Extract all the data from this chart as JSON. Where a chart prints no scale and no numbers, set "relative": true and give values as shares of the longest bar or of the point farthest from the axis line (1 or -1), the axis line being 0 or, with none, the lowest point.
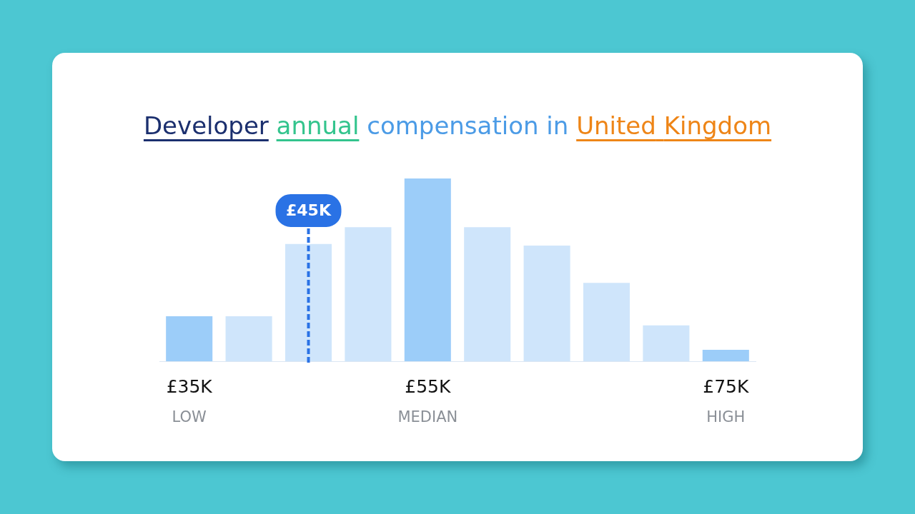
{
  "chart_data": {
    "type": "bar",
    "title": "Developer annual compensation in United Kingdom",
    "categories": [
      "£35K",
      null,
      null,
      null,
      "£55K",
      null,
      null,
      null,
      null,
      "£75K"
    ],
    "values": [
      0.246,
      0.246,
      0.642,
      0.733,
      1,
      0.733,
      0.633,
      0.429,
      0.196,
      0.0625
    ],
    "colors": [
      "#9ccdf9",
      "#cfe5fb",
      "#cfe5fb",
      "#cfe5fb",
      "#9ccdf9",
      "#cfe5fb",
      "#cfe5fb",
      "#cfe5fb",
      "#cfe5fb",
      "#9ccdf9"
    ],
    "relative": true,
    "annotations": [
      "£45K",
      "LOW",
      "MEDIAN",
      "HIGH"
    ]
  }
}
